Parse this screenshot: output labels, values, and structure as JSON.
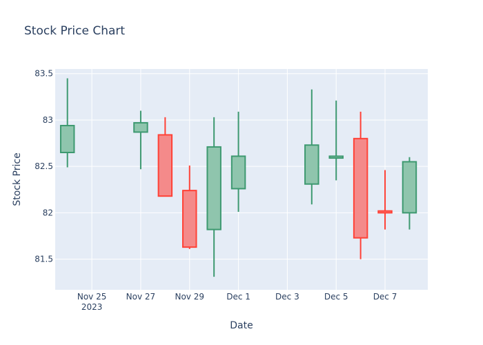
{
  "chart_data": {
    "type": "candlestick",
    "title": "Stock Price Chart",
    "xlabel": "Date",
    "ylabel": "Stock Price",
    "ylim": [
      81.17,
      83.55
    ],
    "xlim": [
      "2023-11-23T12:00",
      "2023-12-08T18:00"
    ],
    "x_ticks": [
      {
        "date": "2023-11-25",
        "label": "Nov 25",
        "sublabel": "2023"
      },
      {
        "date": "2023-11-27",
        "label": "Nov 27",
        "sublabel": ""
      },
      {
        "date": "2023-11-29",
        "label": "Nov 29",
        "sublabel": ""
      },
      {
        "date": "2023-12-01",
        "label": "Dec 1",
        "sublabel": ""
      },
      {
        "date": "2023-12-03",
        "label": "Dec 3",
        "sublabel": ""
      },
      {
        "date": "2023-12-05",
        "label": "Dec 5",
        "sublabel": ""
      },
      {
        "date": "2023-12-07",
        "label": "Dec 7",
        "sublabel": ""
      }
    ],
    "y_ticks": [
      {
        "value": 81.5,
        "label": "81.5"
      },
      {
        "value": 82.0,
        "label": "82"
      },
      {
        "value": 82.5,
        "label": "82.5"
      },
      {
        "value": 83.0,
        "label": "83"
      },
      {
        "value": 83.5,
        "label": "83.5"
      }
    ],
    "candles": [
      {
        "date": "2023-11-24",
        "open": 82.65,
        "high": 83.45,
        "low": 82.49,
        "close": 82.94
      },
      {
        "date": "2023-11-27",
        "open": 82.87,
        "high": 83.1,
        "low": 82.47,
        "close": 82.97
      },
      {
        "date": "2023-11-28",
        "open": 82.84,
        "high": 83.03,
        "low": 82.18,
        "close": 82.18
      },
      {
        "date": "2023-11-29",
        "open": 82.24,
        "high": 82.51,
        "low": 81.61,
        "close": 81.63
      },
      {
        "date": "2023-11-30",
        "open": 81.82,
        "high": 83.03,
        "low": 81.31,
        "close": 82.71
      },
      {
        "date": "2023-12-01",
        "open": 82.26,
        "high": 83.09,
        "low": 82.01,
        "close": 82.61
      },
      {
        "date": "2023-12-04",
        "open": 82.31,
        "high": 83.33,
        "low": 82.09,
        "close": 82.73
      },
      {
        "date": "2023-12-05",
        "open": 82.59,
        "high": 83.21,
        "low": 82.35,
        "close": 82.61
      },
      {
        "date": "2023-12-06",
        "open": 82.8,
        "high": 83.09,
        "low": 81.5,
        "close": 81.73
      },
      {
        "date": "2023-12-07",
        "open": 82.02,
        "high": 82.46,
        "low": 81.82,
        "close": 82.0
      },
      {
        "date": "2023-12-08",
        "open": 82.0,
        "high": 82.6,
        "low": 81.82,
        "close": 82.55
      }
    ],
    "colors": {
      "increasing_line": "#3d9970",
      "increasing_fill": "#8fc5ad",
      "decreasing_line": "#ff4136",
      "decreasing_fill": "#f48a8a",
      "plot_bg": "#e5ecf6",
      "grid": "#ffffff",
      "text": "#2a3f5f"
    },
    "grid": true,
    "legend": false
  }
}
